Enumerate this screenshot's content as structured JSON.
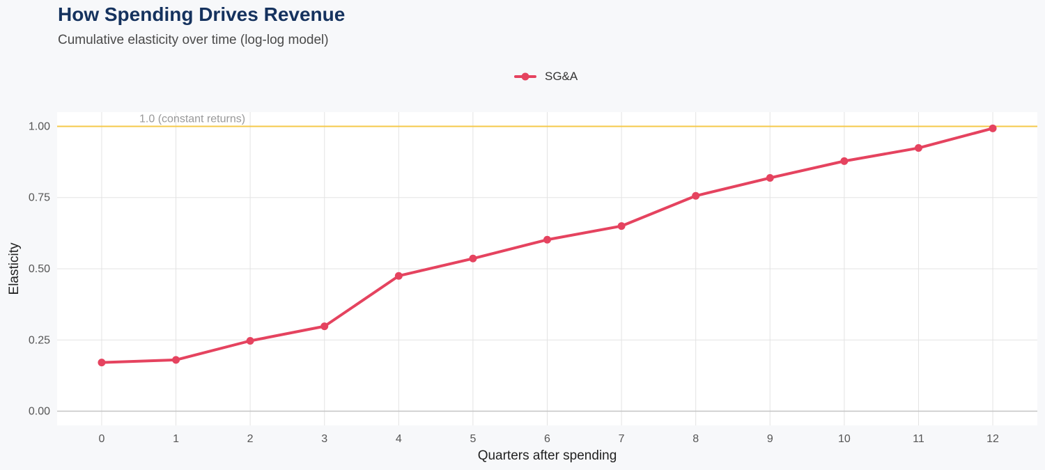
{
  "title": "How Spending Drives Revenue",
  "subtitle": "Cumulative elasticity over time (log-log model)",
  "chart_data": {
    "type": "line",
    "xlabel": "Quarters after spending",
    "ylabel": "Elasticity",
    "x": [
      0,
      1,
      2,
      3,
      4,
      5,
      6,
      7,
      8,
      9,
      10,
      11,
      12
    ],
    "x_ticks": [
      "0",
      "1",
      "2",
      "3",
      "4",
      "5",
      "6",
      "7",
      "8",
      "9",
      "10",
      "11",
      "12"
    ],
    "y_ticks": [
      "0.00",
      "0.25",
      "0.50",
      "0.75",
      "1.00"
    ],
    "y_tick_values": [
      0,
      0.25,
      0.5,
      0.75,
      1.0
    ],
    "xlim": [
      -0.6,
      12.6
    ],
    "ylim": [
      -0.05,
      1.05
    ],
    "grid": true,
    "legend_position": "top-center",
    "series": [
      {
        "name": "SG&A",
        "color": "#e5435f",
        "values": [
          0.171,
          0.18,
          0.247,
          0.298,
          0.475,
          0.536,
          0.602,
          0.65,
          0.756,
          0.819,
          0.878,
          0.924,
          0.993
        ]
      }
    ],
    "reference_line": {
      "y": 1.0,
      "label": "1.0 (constant returns)",
      "color": "#f5c94a"
    }
  },
  "colors": {
    "background": "#f7f8fa",
    "panel": "#ffffff",
    "grid": "#e3e3e3",
    "title": "#15325e"
  }
}
